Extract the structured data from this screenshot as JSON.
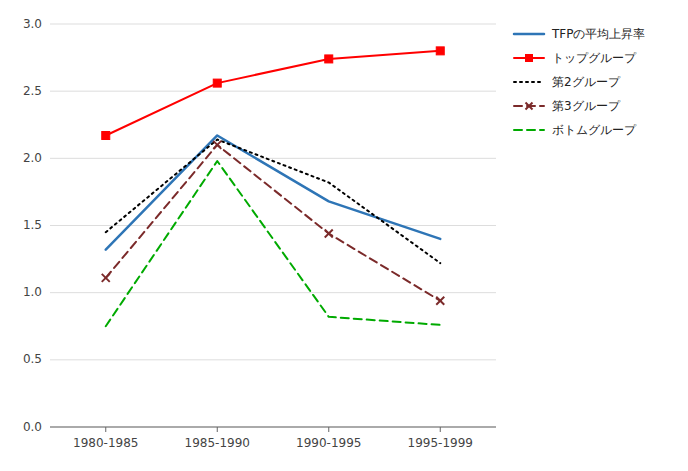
{
  "chart_data": {
    "type": "line",
    "categories": [
      "1980-1985",
      "1985-1990",
      "1990-1995",
      "1995-1999"
    ],
    "series": [
      {
        "name": "TFPの平均上昇率",
        "color": "#2E75B6",
        "line_style": "solid",
        "values": [
          1.32,
          2.17,
          1.68,
          1.4
        ]
      },
      {
        "name": "トップグループ",
        "color": "#FF0000",
        "line_style": "solid",
        "marker": "square",
        "values": [
          2.17,
          2.56,
          2.74,
          2.8
        ]
      },
      {
        "name": "第2グループ",
        "color": "#000000",
        "line_style": "dotted",
        "values": [
          1.45,
          2.14,
          1.82,
          1.22
        ]
      },
      {
        "name": "第3グループ",
        "color": "#7B2A2A",
        "line_style": "dashed",
        "marker": "x",
        "values": [
          1.11,
          2.1,
          1.44,
          0.94
        ]
      },
      {
        "name": "ボトムグループ",
        "color": "#00AA00",
        "line_style": "dashed",
        "values": [
          0.75,
          1.98,
          0.82,
          0.76
        ]
      }
    ],
    "ylim": [
      0.0,
      3.0
    ],
    "yticks": [
      {
        "value": 0,
        "label": "0.0"
      },
      0.5,
      {
        "value": 1,
        "label": "1.0"
      },
      1.5,
      {
        "value": 2,
        "label": "2.0"
      },
      2.5,
      {
        "value": 3,
        "label": "3.0"
      }
    ],
    "grid": true,
    "legend": "right"
  }
}
